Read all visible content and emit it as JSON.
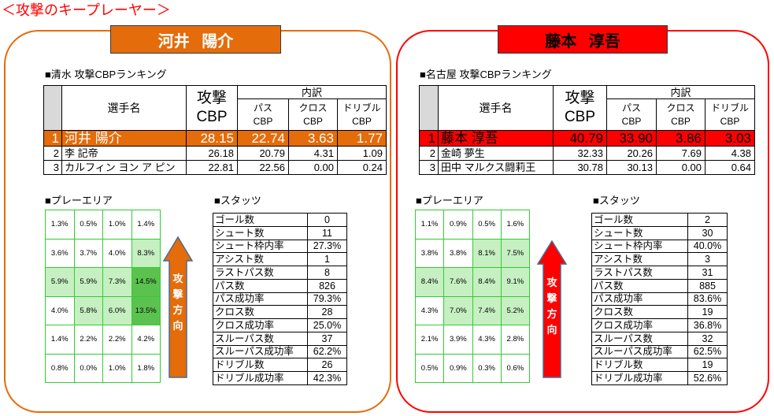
{
  "title": "＜攻撃のキープレーヤー＞",
  "colors": {
    "title": "#FF0000",
    "play_area_border": "#33CC33",
    "play_area_light": "#C6EFC2",
    "play_area_dark": "#5BC24F",
    "arrow_outline": "#4A6D93"
  },
  "panels": [
    {
      "player_name": "河井 陽介",
      "accent": "#E46C0A",
      "accent_text": "#FFFFFF",
      "ranking": {
        "label": "■清水 攻撃CBPランキング",
        "header": {
          "player": "選手名",
          "attack_line1": "攻撃",
          "attack_line2": "CBP",
          "breakdown": "内訳",
          "pass_line1": "パス",
          "pass_line2": "CBP",
          "cross_line1": "クロス",
          "cross_line2": "CBP",
          "dribble_line1": "ドリブル",
          "dribble_line2": "CBP"
        },
        "rows": [
          {
            "rank": "1",
            "name": "河井 陽介",
            "attack": "28.15",
            "pass": "22.74",
            "cross": "3.63",
            "dribble": "1.77"
          },
          {
            "rank": "2",
            "name": "李 記帝",
            "attack": "26.18",
            "pass": "20.79",
            "cross": "4.31",
            "dribble": "1.09"
          },
          {
            "rank": "3",
            "name": "カルフィン ヨン ア ピン",
            "attack": "22.81",
            "pass": "22.56",
            "cross": "0.00",
            "dribble": "0.24"
          }
        ]
      },
      "play_area": {
        "label": "■プレーエリア",
        "cells": [
          [
            "1.3%",
            "0.5%",
            "1.0%",
            "1.4%"
          ],
          [
            "3.6%",
            "3.7%",
            "4.0%",
            "8.3%"
          ],
          [
            "5.9%",
            "5.9%",
            "7.3%",
            "14.5%"
          ],
          [
            "4.0%",
            "5.8%",
            "6.0%",
            "13.5%"
          ],
          [
            "1.4%",
            "2.2%",
            "2.2%",
            "4.2%"
          ],
          [
            "0.8%",
            "0.0%",
            "1.0%",
            "1.8%"
          ]
        ]
      },
      "arrow_label": "攻撃方向",
      "stats": {
        "label": "■スタッツ",
        "rows": [
          {
            "name": "ゴール数",
            "value": "0"
          },
          {
            "name": "シュート数",
            "value": "11"
          },
          {
            "name": "シュート枠内率",
            "value": "27.3%"
          },
          {
            "name": "アシスト数",
            "value": "1"
          },
          {
            "name": "ラストパス数",
            "value": "8"
          },
          {
            "name": "パス数",
            "value": "826"
          },
          {
            "name": "パス成功率",
            "value": "79.3%"
          },
          {
            "name": "クロス数",
            "value": "28"
          },
          {
            "name": "クロス成功率",
            "value": "25.0%"
          },
          {
            "name": "スルーパス数",
            "value": "37"
          },
          {
            "name": "スルーパス成功率",
            "value": "62.2%"
          },
          {
            "name": "ドリブル数",
            "value": "26"
          },
          {
            "name": "ドリブル成功率",
            "value": "42.3%"
          }
        ]
      }
    },
    {
      "player_name": "藤本 淳吾",
      "accent": "#FF0000",
      "accent_text": "#000000",
      "ranking": {
        "label": "■名古屋 攻撃CBPランキング",
        "header": {
          "player": "選手名",
          "attack_line1": "攻撃",
          "attack_line2": "CBP",
          "breakdown": "内訳",
          "pass_line1": "パス",
          "pass_line2": "CBP",
          "cross_line1": "クロス",
          "cross_line2": "CBP",
          "dribble_line1": "ドリブル",
          "dribble_line2": "CBP"
        },
        "rows": [
          {
            "rank": "1",
            "name": "藤本 淳吾",
            "attack": "40.79",
            "pass": "33.90",
            "cross": "3.86",
            "dribble": "3.03"
          },
          {
            "rank": "2",
            "name": "金崎 夢生",
            "attack": "32.33",
            "pass": "20.26",
            "cross": "7.69",
            "dribble": "4.38"
          },
          {
            "rank": "3",
            "name": "田中 マルクス闘莉王",
            "attack": "30.78",
            "pass": "30.13",
            "cross": "0.00",
            "dribble": "0.64"
          }
        ]
      },
      "play_area": {
        "label": "■プレーエリア",
        "cells": [
          [
            "1.1%",
            "0.9%",
            "0.5%",
            "1.6%"
          ],
          [
            "3.8%",
            "3.8%",
            "8.1%",
            "7.5%"
          ],
          [
            "8.4%",
            "7.6%",
            "8.4%",
            "9.1%"
          ],
          [
            "4.3%",
            "7.0%",
            "7.4%",
            "5.2%"
          ],
          [
            "2.1%",
            "3.9%",
            "4.3%",
            "2.8%"
          ],
          [
            "0.5%",
            "0.9%",
            "0.3%",
            "0.6%"
          ]
        ]
      },
      "arrow_label": "攻撃方向",
      "stats": {
        "label": "■スタッツ",
        "rows": [
          {
            "name": "ゴール数",
            "value": "2"
          },
          {
            "name": "シュート数",
            "value": "30"
          },
          {
            "name": "シュート枠内率",
            "value": "40.0%"
          },
          {
            "name": "アシスト数",
            "value": "3"
          },
          {
            "name": "ラストパス数",
            "value": "31"
          },
          {
            "name": "パス数",
            "value": "885"
          },
          {
            "name": "パス成功率",
            "value": "83.6%"
          },
          {
            "name": "クロス数",
            "value": "19"
          },
          {
            "name": "クロス成功率",
            "value": "36.8%"
          },
          {
            "name": "スルーパス数",
            "value": "32"
          },
          {
            "name": "スルーパス成功率",
            "value": "62.5%"
          },
          {
            "name": "ドリブル数",
            "value": "19"
          },
          {
            "name": "ドリブル成功率",
            "value": "52.6%"
          }
        ]
      }
    }
  ]
}
